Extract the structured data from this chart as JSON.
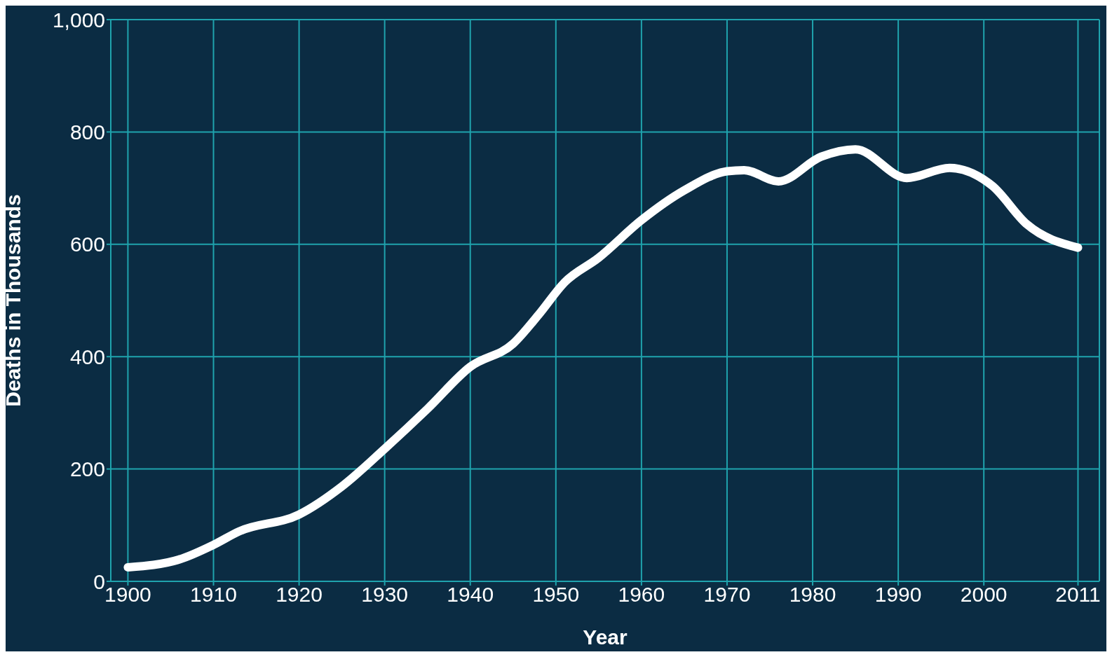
{
  "chart_data": {
    "type": "line",
    "xlabel": "Year",
    "ylabel": "Deaths in Thousands",
    "x": [
      1900,
      1906,
      1910,
      1913,
      1920,
      1925,
      1930,
      1935,
      1940,
      1945,
      1948,
      1951,
      1955,
      1960,
      1965,
      1970,
      1972,
      1976,
      1981,
      1985,
      1991,
      1996,
      2001,
      2005,
      2011
    ],
    "series": [
      {
        "color": "#ffffff",
        "values": [
          25,
          39,
          65,
          89,
          119,
          169,
          236,
          307,
          382,
          423,
          475,
          532,
          576,
          643,
          696,
          730,
          732,
          712,
          756,
          769,
          718,
          736,
          704,
          636,
          594
        ]
      }
    ],
    "xlim": [
      1898,
      2013.5
    ],
    "xticks": [
      1900,
      1910,
      1920,
      1930,
      1940,
      1950,
      1960,
      1970,
      1980,
      1990,
      2000,
      2011
    ],
    "ylim": [
      0,
      1000
    ],
    "yticks": [
      0,
      200,
      400,
      600,
      800,
      {
        "value": 1000,
        "label": "1,000"
      }
    ],
    "grid": true,
    "marker": "none",
    "line_style": "solid"
  }
}
